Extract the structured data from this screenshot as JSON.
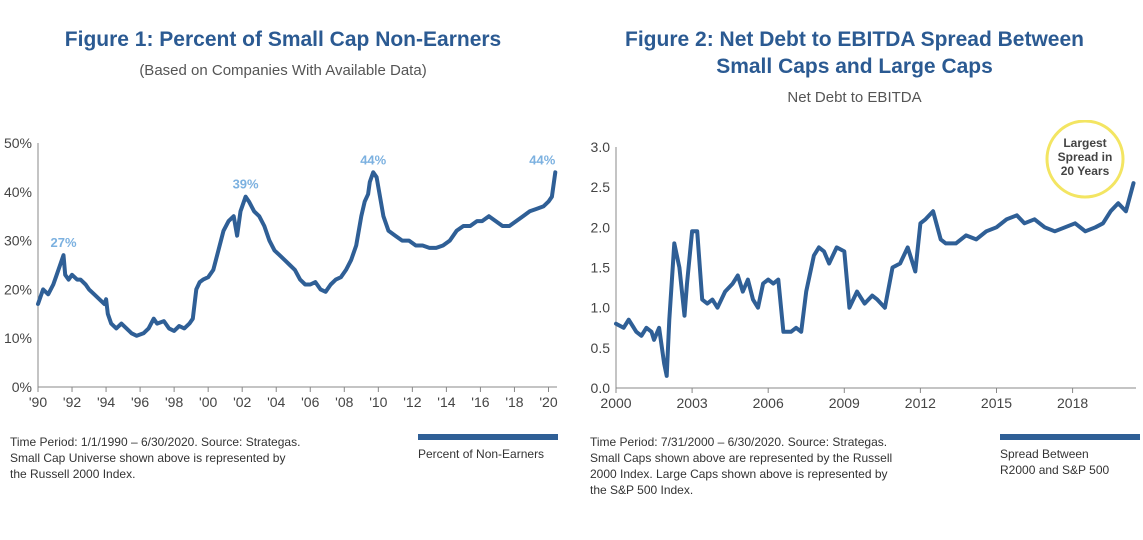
{
  "chart_data": [
    {
      "type": "line",
      "title": "Figure 1: Percent of Small Cap Non-Earners",
      "subtitle": "(Based on Companies With Available Data)",
      "xlabel": "",
      "ylabel": "",
      "xlim": [
        1990,
        2020.5
      ],
      "ylim": [
        0,
        50
      ],
      "y_tick_labels": [
        "0%",
        "10%",
        "20%",
        "30%",
        "40%",
        "50%"
      ],
      "x_tick_labels": [
        "'90",
        "'92",
        "'94",
        "'96",
        "'98",
        "'00",
        "'02",
        "'04",
        "'06",
        "'08",
        "'10",
        "'12",
        "'14",
        "'16",
        "'18",
        "'20"
      ],
      "grid": false,
      "legend_position": "bottom-right",
      "series": [
        {
          "name": "Percent of Non-Earners",
          "color": "#2f5f96",
          "x": [
            1990.0,
            1990.3,
            1990.6,
            1990.9,
            1991.1,
            1991.3,
            1991.5,
            1991.6,
            1991.8,
            1992.0,
            1992.3,
            1992.5,
            1992.8,
            1993.0,
            1993.3,
            1993.6,
            1993.9,
            1994.0,
            1994.1,
            1994.3,
            1994.6,
            1994.9,
            1995.2,
            1995.5,
            1995.8,
            1996.2,
            1996.5,
            1996.8,
            1997.0,
            1997.4,
            1997.7,
            1998.0,
            1998.3,
            1998.6,
            1998.9,
            1999.1,
            1999.3,
            1999.5,
            1999.7,
            2000.0,
            2000.3,
            2000.6,
            2000.9,
            2001.2,
            2001.5,
            2001.7,
            2001.9,
            2002.2,
            2002.4,
            2002.7,
            2003.0,
            2003.3,
            2003.6,
            2003.9,
            2004.2,
            2004.5,
            2004.8,
            2005.1,
            2005.4,
            2005.7,
            2006.0,
            2006.3,
            2006.6,
            2006.9,
            2007.2,
            2007.5,
            2007.8,
            2008.1,
            2008.4,
            2008.7,
            2009.0,
            2009.2,
            2009.4,
            2009.5,
            2009.7,
            2009.9,
            2010.1,
            2010.3,
            2010.6,
            2011.0,
            2011.4,
            2011.8,
            2012.2,
            2012.6,
            2013.0,
            2013.4,
            2013.8,
            2014.2,
            2014.6,
            2015.0,
            2015.4,
            2015.8,
            2016.1,
            2016.5,
            2016.9,
            2017.3,
            2017.7,
            2018.1,
            2018.5,
            2018.9,
            2019.3,
            2019.7,
            2020.0,
            2020.2,
            2020.4
          ],
          "values": [
            17,
            20,
            19,
            21,
            23,
            25,
            27,
            23,
            22,
            23,
            22,
            22,
            21,
            20,
            19,
            18,
            17,
            18,
            15,
            13,
            12,
            13,
            12,
            11,
            10.5,
            11,
            12,
            14,
            13,
            13.5,
            12,
            11.5,
            12.5,
            12,
            13,
            14,
            20,
            21.5,
            22,
            22.5,
            24,
            28,
            32,
            34,
            35,
            31,
            36,
            39,
            38,
            36,
            35,
            33,
            30,
            28,
            27,
            26,
            25,
            24,
            22,
            21,
            21,
            21.5,
            20,
            19.5,
            21,
            22,
            22.5,
            24,
            26,
            29,
            35,
            38,
            39.5,
            42,
            44,
            43,
            39,
            35,
            32,
            31,
            30,
            30,
            29,
            29,
            28.5,
            28.5,
            29,
            30,
            32,
            33,
            33,
            34,
            34,
            35,
            34,
            33,
            33,
            34,
            35,
            36,
            36.5,
            37,
            38,
            39,
            44
          ]
        }
      ],
      "annotations": [
        "27%",
        "39%",
        "44%",
        "44%"
      ],
      "annotation_x": [
        1991.5,
        2002.2,
        2009.7,
        2020.4
      ],
      "annotation_y": [
        27,
        39,
        44,
        44
      ]
    },
    {
      "type": "line",
      "title": "Figure 2: Net Debt to EBITDA Spread Between Small Caps and Large Caps",
      "subtitle": "Net Debt to EBITDA",
      "xlabel": "",
      "ylabel": "",
      "xlim": [
        2000,
        2020.5
      ],
      "ylim": [
        0,
        3.0
      ],
      "y_tick_labels": [
        "0.0",
        "0.5",
        "1.0",
        "1.5",
        "2.0",
        "2.5",
        "3.0"
      ],
      "x_tick_labels": [
        "2000",
        "2003",
        "2006",
        "2009",
        "2012",
        "2015",
        "2018"
      ],
      "grid": false,
      "legend_position": "bottom-right",
      "series": [
        {
          "name": "Spread Between R2000 and S&P 500",
          "color": "#2f5f96",
          "x": [
            2000.0,
            2000.3,
            2000.5,
            2000.8,
            2001.0,
            2001.2,
            2001.4,
            2001.5,
            2001.7,
            2001.9,
            2002.0,
            2002.1,
            2002.3,
            2002.5,
            2002.7,
            2002.8,
            2003.0,
            2003.2,
            2003.4,
            2003.6,
            2003.8,
            2004.0,
            2004.3,
            2004.6,
            2004.8,
            2005.0,
            2005.2,
            2005.4,
            2005.6,
            2005.8,
            2006.0,
            2006.2,
            2006.4,
            2006.6,
            2006.9,
            2007.1,
            2007.3,
            2007.5,
            2007.8,
            2008.0,
            2008.2,
            2008.4,
            2008.7,
            2009.0,
            2009.2,
            2009.5,
            2009.8,
            2010.1,
            2010.3,
            2010.6,
            2010.9,
            2011.2,
            2011.5,
            2011.8,
            2012.0,
            2012.2,
            2012.5,
            2012.8,
            2013.0,
            2013.4,
            2013.8,
            2014.2,
            2014.6,
            2015.0,
            2015.4,
            2015.8,
            2016.1,
            2016.5,
            2016.9,
            2017.3,
            2017.7,
            2018.1,
            2018.5,
            2018.9,
            2019.2,
            2019.5,
            2019.8,
            2020.1,
            2020.4
          ],
          "values": [
            0.8,
            0.75,
            0.85,
            0.7,
            0.65,
            0.75,
            0.7,
            0.6,
            0.75,
            0.3,
            0.15,
            0.85,
            1.8,
            1.5,
            0.9,
            1.3,
            1.95,
            1.95,
            1.1,
            1.05,
            1.1,
            1.0,
            1.2,
            1.3,
            1.4,
            1.2,
            1.35,
            1.1,
            1.0,
            1.3,
            1.35,
            1.3,
            1.35,
            0.7,
            0.7,
            0.75,
            0.7,
            1.2,
            1.65,
            1.75,
            1.7,
            1.55,
            1.75,
            1.7,
            1.0,
            1.2,
            1.05,
            1.15,
            1.1,
            1.0,
            1.5,
            1.55,
            1.75,
            1.45,
            2.05,
            2.1,
            2.2,
            1.85,
            1.8,
            1.8,
            1.9,
            1.85,
            1.95,
            2.0,
            2.1,
            2.15,
            2.05,
            2.1,
            2.0,
            1.95,
            2.0,
            2.05,
            1.95,
            2.0,
            2.05,
            2.2,
            2.3,
            2.2,
            2.55
          ]
        }
      ],
      "annotations": [
        "Largest",
        "Spread in",
        "20 Years"
      ],
      "annotation_color": "#f3e562"
    }
  ],
  "fig1": {
    "title": "Figure 1: Percent of Small Cap Non-Earners",
    "subtitle": "(Based on Companies With Available Data)",
    "note_line1": "Time Period: 1/1/1990 – 6/30/2020. Source: Strategas.",
    "note_line2": "Small Cap Universe shown above is represented by",
    "note_line3": "the Russell 2000 Index.",
    "legend_label": "Percent of Non-Earners"
  },
  "fig2": {
    "title_line1": "Figure 2: Net Debt to EBITDA Spread Between",
    "title_line2": "Small Caps and Large Caps",
    "subtitle": "Net Debt to EBITDA",
    "note_line1": "Time Period: 7/31/2000 – 6/30/2020. Source: Strategas.",
    "note_line2": "Small Caps shown above are represented by the Russell",
    "note_line3": "2000 Index. Large Caps shown above is represented by",
    "note_line4": "the S&P 500 Index.",
    "legend_line1": "Spread Between",
    "legend_line2": "R2000 and S&P 500"
  }
}
